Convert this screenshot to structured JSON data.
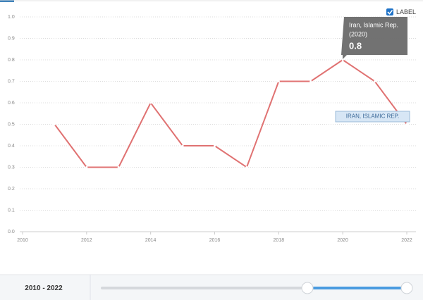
{
  "chart_data": {
    "type": "line",
    "x": [
      2011,
      2012,
      2013,
      2014,
      2015,
      2016,
      2017,
      2018,
      2019,
      2020,
      2021,
      2022
    ],
    "series": [
      {
        "name": "Iran, Islamic Rep.",
        "color": "#e07272",
        "values": [
          0.5,
          0.3,
          0.3,
          0.6,
          0.4,
          0.4,
          0.3,
          0.7,
          0.7,
          0.8,
          0.7,
          0.5
        ]
      }
    ],
    "xlim": [
      2010,
      2022
    ],
    "xticks": [
      2010,
      2012,
      2014,
      2016,
      2018,
      2020,
      2022
    ],
    "ylim": [
      0,
      1
    ],
    "yticks": [
      {
        "value": 0,
        "label": "0.0"
      },
      0.1,
      0.2,
      0.3,
      0.4,
      0.5,
      0.6,
      0.7,
      0.8,
      0.9,
      {
        "value": 1,
        "label": "1.0"
      }
    ],
    "grid": true,
    "label_toggle": "LABEL",
    "line_label": "IRAN, ISLAMIC REP.",
    "tooltip": {
      "title": "Iran, Islamic Rep.",
      "year": "(2020)",
      "value": 0.8
    },
    "range_label": "2010 - 2022"
  }
}
